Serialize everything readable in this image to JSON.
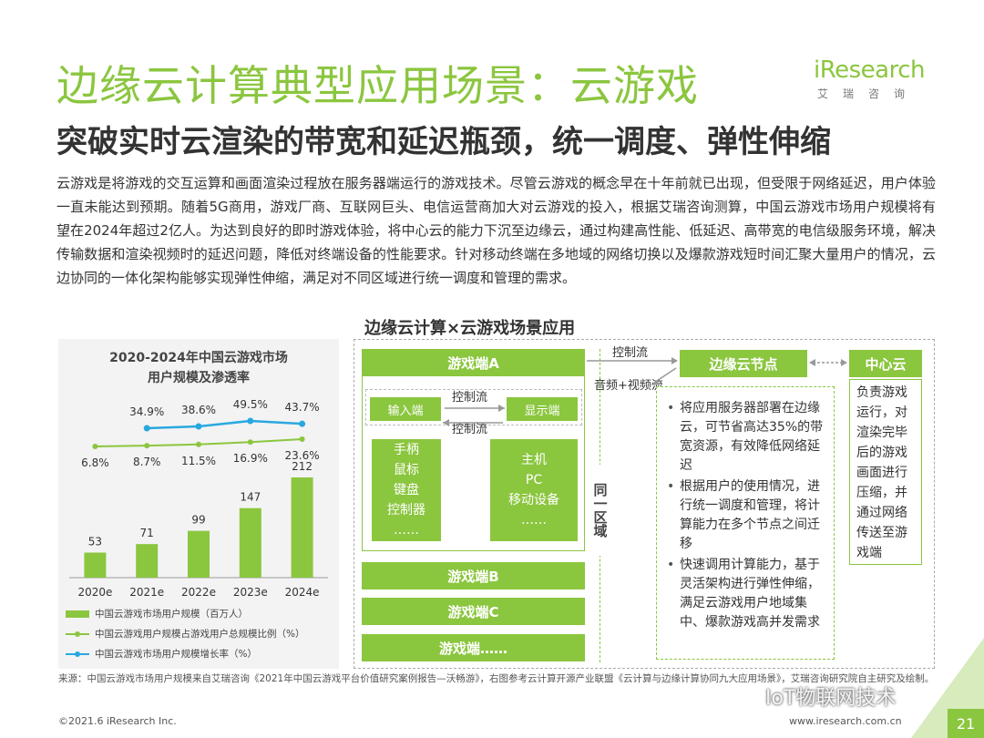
{
  "header": {
    "title": "边缘云计算典型应用场景：云游戏",
    "subtitle": "突破实时云渲染的带宽和延迟瓶颈，统一调度、弹性伸缩"
  },
  "logo": {
    "main": "iResearch",
    "sub": "艾瑞咨询"
  },
  "body_text": "云游戏是将游戏的交互运算和画面渲染过程放在服务器端运行的游戏技术。尽管云游戏的概念早在十年前就已出现，但受限于网络延迟，用户体验一直未能达到预期。随着5G商用，游戏厂商、互联网巨头、电信运营商加大对云游戏的投入，根据艾瑞咨询测算，中国云游戏市场用户规模将有望在2024年超过2亿人。为达到良好的即时游戏体验，将中心云的能力下沉至边缘云，通过构建高性能、低延迟、高带宽的电信级服务环境，解决传输数据和渲染视频时的延迟问题，降低对终端设备的性能要求。针对移动终端在多地域的网络切换以及爆款游戏短时间汇聚大量用户的情况，云边协同的一体化架构能够实现弹性伸缩，满足对不同区域进行统一调度和管理的需求。",
  "chart_data": {
    "type": "bar",
    "title_line1": "2020-2024年中国云游戏市场",
    "title_line2": "用户规模及渗透率",
    "categories": [
      "2020e",
      "2021e",
      "2022e",
      "2023e",
      "2024e"
    ],
    "series": [
      {
        "name": "中国云游戏市场用户规模（百万人）",
        "type": "bar",
        "values": [
          53,
          71,
          99,
          147,
          212
        ],
        "labels": [
          "53",
          "71",
          "99",
          "147",
          "212"
        ]
      },
      {
        "name": "中国云游戏用户规模占游戏用户总规模比例（%）",
        "type": "line",
        "values": [
          6.8,
          8.7,
          11.5,
          16.9,
          23.6
        ],
        "labels": [
          "6.8%",
          "8.7%",
          "11.5%",
          "16.9%",
          "23.6%"
        ]
      },
      {
        "name": "中国云游戏市场用户规模增长率（%）",
        "type": "line",
        "values": [
          null,
          34.9,
          38.6,
          49.5,
          43.7
        ],
        "labels": [
          "",
          "34.9%",
          "38.6%",
          "49.5%",
          "43.7%"
        ]
      }
    ],
    "colors": {
      "bar": "#8bc63f",
      "ratio_line": "#8bc63f",
      "growth_line": "#29a8e0"
    },
    "grid": false,
    "legend_position": "bottom"
  },
  "diagram": {
    "title": "边缘云计算×云游戏场景应用",
    "game_a": "游戏端A",
    "input": "输入端",
    "display": "显示端",
    "control_flow": "控制流",
    "devices_left": [
      "手柄",
      "鼠标",
      "键盘",
      "控制器",
      "……"
    ],
    "devices_right": [
      "主机",
      "PC",
      "移动设备",
      "……"
    ],
    "game_b": "游戏端B",
    "game_c": "游戏端C",
    "game_etc": "游戏端……",
    "same_region": "同一区域",
    "control_flow_top": "控制流",
    "av_flow": "音频+视频流",
    "edge_node": "边缘云节点",
    "edge_points": [
      "将应用服务器部署在边缘云，可节省高达35%的带宽资源，有效降低网络延迟",
      "根据用户的使用情况，进行统一调度和管理，将计算能力在多个节点之间迁移",
      "快速调用计算能力，基于灵活架构进行弹性伸缩，满足云游戏用户地域集中、爆款游戏高并发需求"
    ],
    "center_cloud": "中心云",
    "center_text": "负责游戏运行，对渲染完毕后的游戏画面进行压缩，并通过网络传送至游戏端"
  },
  "footer": {
    "source": "来源：中国云游戏市场用户规模来自艾瑞咨询《2021年中国云游戏平台价值研究案例报告—沃畅游》，右图参考云计算开源产业联盟《云计算与边缘计算协同九大应用场景》，艾瑞咨询研究院自主研究及绘制。",
    "copyright": "©2021.6 iResearch Inc.",
    "website": "www.iresearch.com.cn",
    "page": "21",
    "watermark": "IoT物联网技术"
  }
}
